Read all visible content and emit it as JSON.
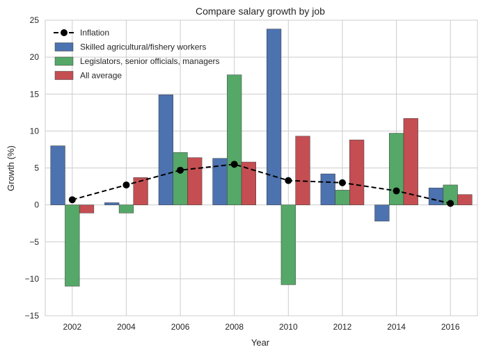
{
  "chart_data": {
    "type": "bar",
    "title": "Compare salary growth by job",
    "xlabel": "Year",
    "ylabel": "Growth (%)",
    "categories": [
      "2002",
      "2004",
      "2006",
      "2008",
      "2010",
      "2012",
      "2014",
      "2016"
    ],
    "ylim": [
      -15,
      25
    ],
    "yticks": [
      -15,
      -10,
      -5,
      0,
      5,
      10,
      15,
      20,
      25
    ],
    "yticklabels": [
      "−15",
      "−10",
      "−5",
      "0",
      "5",
      "10",
      "15",
      "20",
      "25"
    ],
    "grid": true,
    "legend_position": "top-left",
    "series": [
      {
        "name": "Skilled agricultural/fishery workers",
        "color": "#4c72b0",
        "values": [
          8.0,
          0.3,
          14.9,
          6.3,
          23.8,
          4.2,
          -2.2,
          2.3
        ]
      },
      {
        "name": "Legislators, senior officials, managers",
        "color": "#55a868",
        "values": [
          -11.0,
          -1.1,
          7.1,
          17.6,
          -10.8,
          2.0,
          9.7,
          2.7
        ]
      },
      {
        "name": "All average",
        "color": "#c44e52",
        "values": [
          -1.1,
          3.7,
          6.4,
          5.8,
          9.3,
          8.8,
          11.7,
          1.4
        ]
      }
    ],
    "line": {
      "name": "Inflation",
      "color": "#000000",
      "values": [
        0.7,
        2.7,
        4.7,
        5.5,
        3.3,
        3.0,
        1.9,
        0.2
      ]
    }
  }
}
